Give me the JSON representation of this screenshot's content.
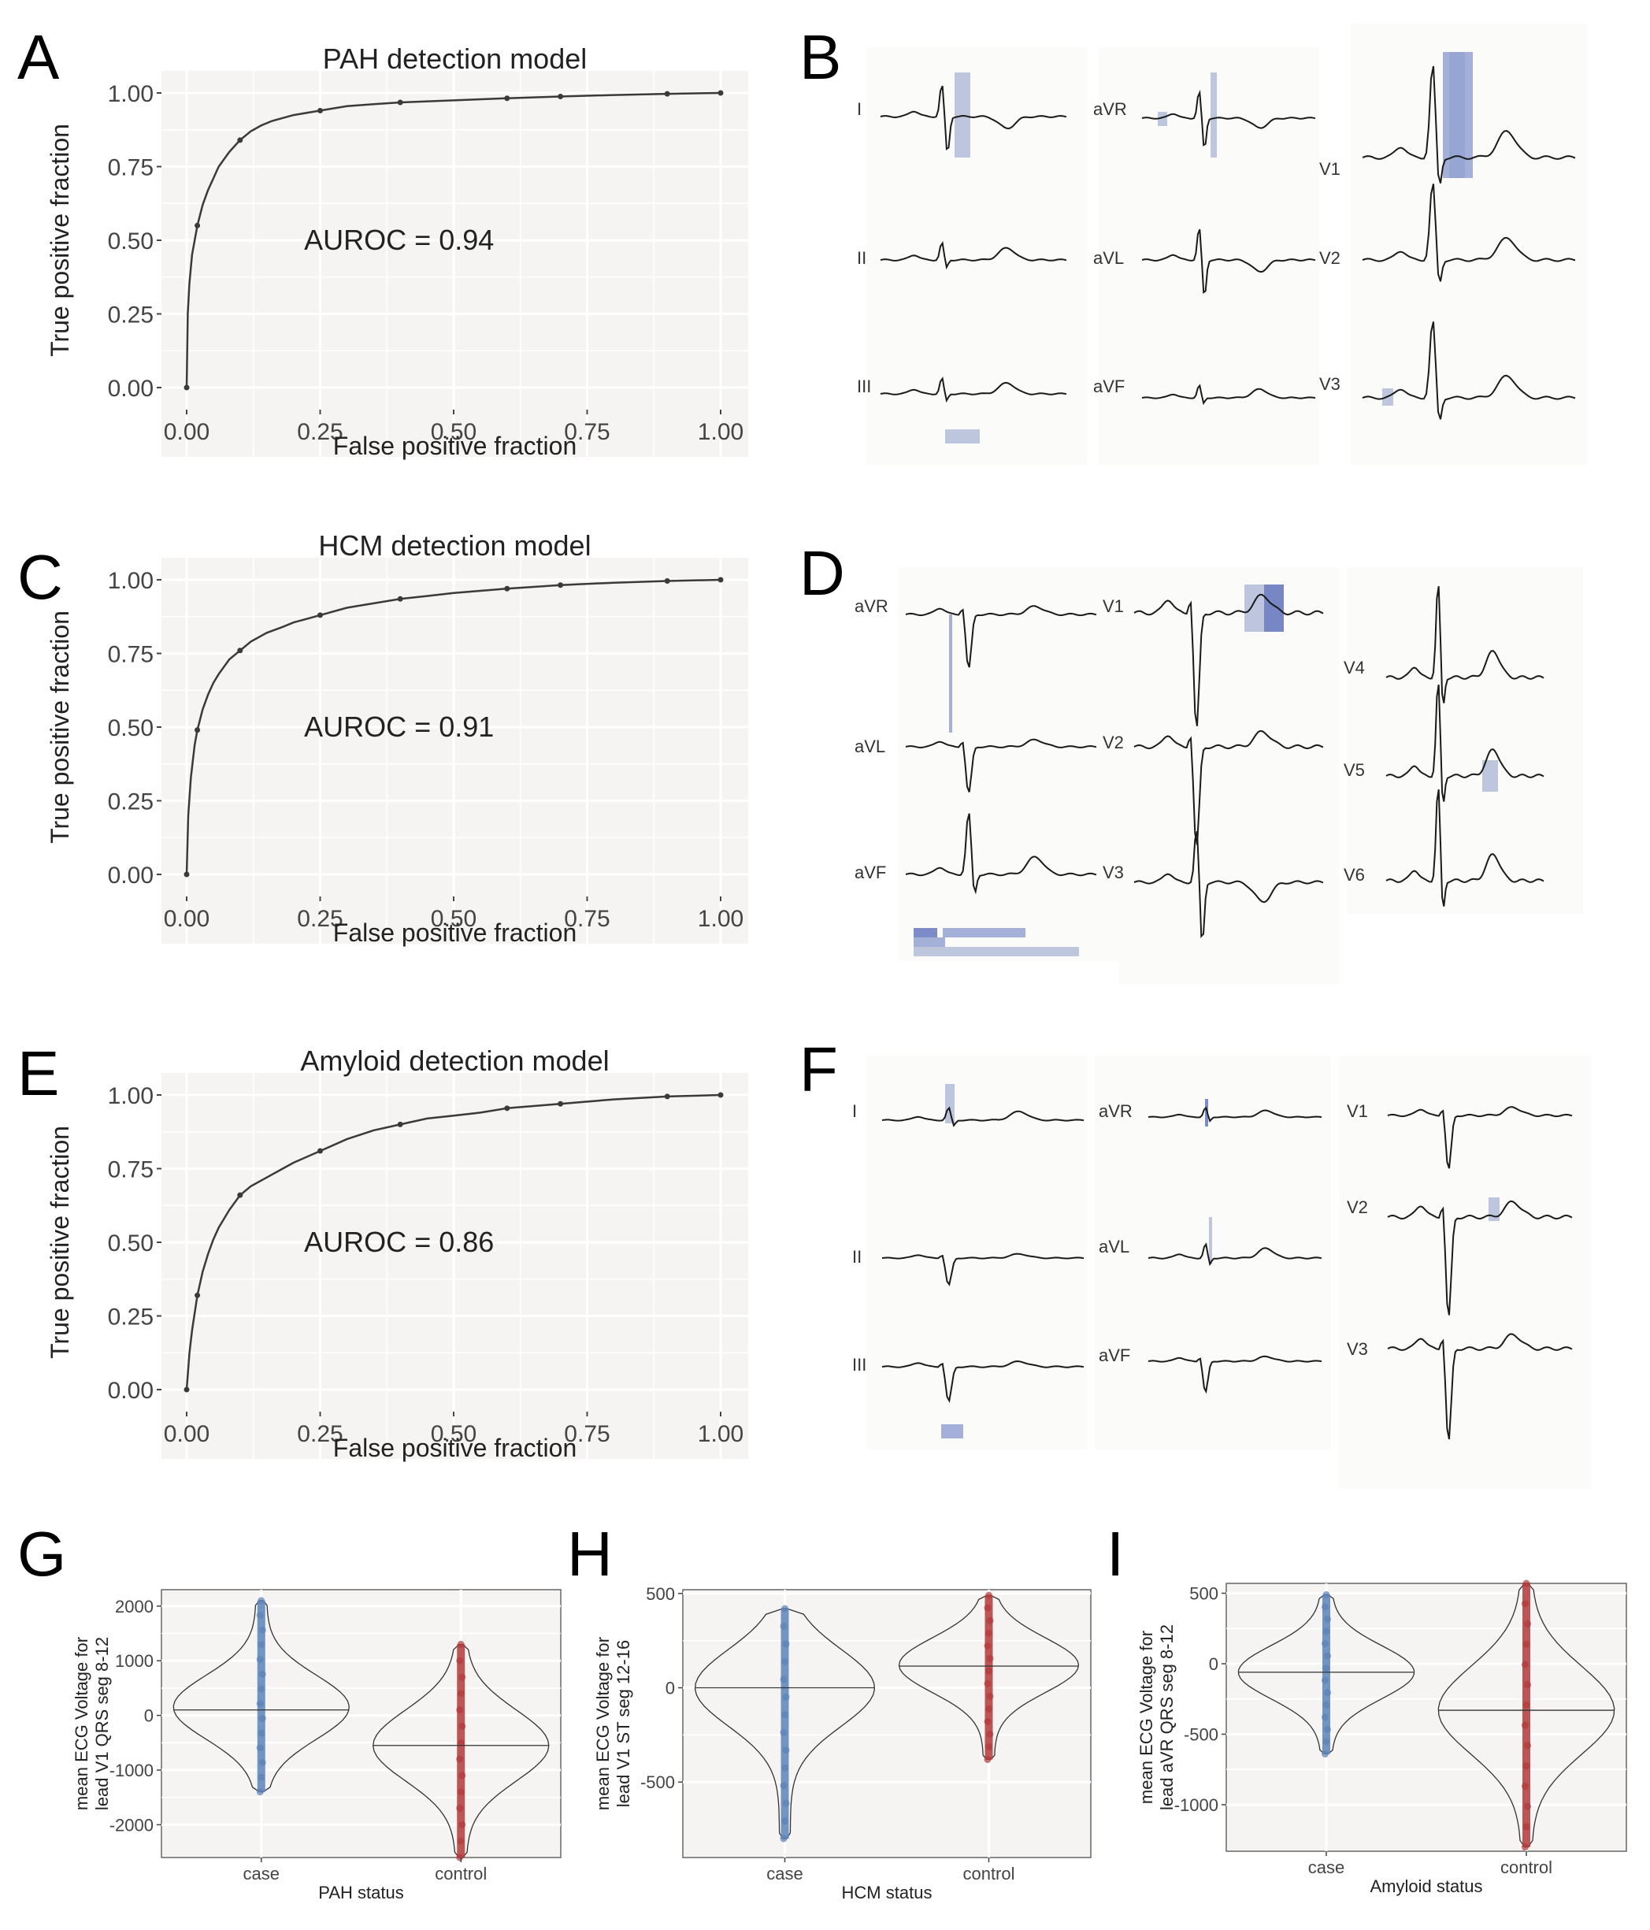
{
  "panel_letters": [
    "A",
    "B",
    "C",
    "D",
    "E",
    "F",
    "G",
    "H",
    "I"
  ],
  "colors": {
    "panel_bg": "#f5f4f2",
    "grid": "#ffffff",
    "roc_line": "#3a3a3a",
    "ecg_line": "#1a1a1a",
    "highlight_light": "#b7c0d9",
    "highlight_mid": "#9aa7d4",
    "highlight_dark": "#6f7fc2",
    "case": "#5b82b8",
    "control": "#b03a3a"
  },
  "chart_data": [
    {
      "id": "A",
      "type": "line",
      "title": "PAH detection model",
      "xlabel": "False positive fraction",
      "ylabel": "True positive fraction",
      "xlim": [
        0,
        1
      ],
      "ylim": [
        0,
        1
      ],
      "xticks": [
        "0.00",
        "0.25",
        "0.50",
        "0.75",
        "1.00"
      ],
      "yticks": [
        "0.00",
        "0.25",
        "0.50",
        "0.75",
        "1.00"
      ],
      "grid": true,
      "annotation": "AUROC = 0.94",
      "x": [
        0,
        0.002,
        0.005,
        0.01,
        0.015,
        0.02,
        0.03,
        0.04,
        0.05,
        0.06,
        0.08,
        0.1,
        0.12,
        0.14,
        0.16,
        0.18,
        0.2,
        0.25,
        0.3,
        0.35,
        0.4,
        0.5,
        0.6,
        0.7,
        0.8,
        0.9,
        1.0
      ],
      "y": [
        0,
        0.25,
        0.35,
        0.45,
        0.5,
        0.55,
        0.62,
        0.67,
        0.71,
        0.75,
        0.8,
        0.84,
        0.87,
        0.89,
        0.905,
        0.915,
        0.925,
        0.94,
        0.955,
        0.962,
        0.968,
        0.975,
        0.982,
        0.988,
        0.993,
        0.997,
        1.0
      ]
    },
    {
      "id": "C",
      "type": "line",
      "title": "HCM detection model",
      "xlabel": "False positive fraction",
      "ylabel": "True positive fraction",
      "xlim": [
        0,
        1
      ],
      "ylim": [
        0,
        1
      ],
      "xticks": [
        "0.00",
        "0.25",
        "0.50",
        "0.75",
        "1.00"
      ],
      "yticks": [
        "0.00",
        "0.25",
        "0.50",
        "0.75",
        "1.00"
      ],
      "grid": true,
      "annotation": "AUROC = 0.91",
      "x": [
        0,
        0.003,
        0.008,
        0.015,
        0.02,
        0.03,
        0.04,
        0.05,
        0.06,
        0.08,
        0.1,
        0.12,
        0.15,
        0.18,
        0.2,
        0.25,
        0.3,
        0.35,
        0.4,
        0.45,
        0.5,
        0.6,
        0.7,
        0.8,
        0.9,
        1.0
      ],
      "y": [
        0,
        0.2,
        0.33,
        0.44,
        0.49,
        0.56,
        0.61,
        0.65,
        0.68,
        0.73,
        0.76,
        0.79,
        0.82,
        0.84,
        0.855,
        0.88,
        0.905,
        0.92,
        0.935,
        0.945,
        0.955,
        0.97,
        0.982,
        0.99,
        0.996,
        1.0
      ]
    },
    {
      "id": "E",
      "type": "line",
      "title": "Amyloid detection model",
      "xlabel": "False positive fraction",
      "ylabel": "True positive fraction",
      "xlim": [
        0,
        1
      ],
      "ylim": [
        0,
        1
      ],
      "xticks": [
        "0.00",
        "0.25",
        "0.50",
        "0.75",
        "1.00"
      ],
      "yticks": [
        "0.00",
        "0.25",
        "0.50",
        "0.75",
        "1.00"
      ],
      "grid": true,
      "annotation": "AUROC = 0.86",
      "x": [
        0,
        0.005,
        0.01,
        0.02,
        0.03,
        0.04,
        0.05,
        0.06,
        0.08,
        0.1,
        0.12,
        0.15,
        0.18,
        0.2,
        0.25,
        0.3,
        0.35,
        0.4,
        0.45,
        0.5,
        0.55,
        0.6,
        0.7,
        0.8,
        0.9,
        1.0
      ],
      "y": [
        0,
        0.12,
        0.2,
        0.32,
        0.4,
        0.46,
        0.51,
        0.55,
        0.61,
        0.66,
        0.69,
        0.72,
        0.75,
        0.77,
        0.81,
        0.85,
        0.88,
        0.9,
        0.92,
        0.93,
        0.94,
        0.955,
        0.97,
        0.985,
        0.995,
        1.0
      ]
    },
    {
      "id": "G",
      "type": "scatter",
      "xlabel": "PAH status",
      "ylabel": "mean ECG Voltage for lead V1 QRS seg 8-12",
      "categories": [
        "case",
        "control"
      ],
      "ylim": [
        -2600,
        2300
      ],
      "yticks": [
        2000,
        1000,
        0,
        -1000,
        -2000
      ],
      "ytick_labels": [
        "2000",
        "1000",
        "0",
        "-1000",
        "-2000"
      ],
      "grid": true,
      "series": [
        {
          "category": "case",
          "median": 100,
          "min": -1400,
          "max": 2100,
          "mode": 150
        },
        {
          "category": "control",
          "median": -550,
          "min": -2600,
          "max": 1300,
          "mode": -550
        }
      ]
    },
    {
      "id": "H",
      "type": "scatter",
      "xlabel": "HCM status",
      "ylabel": "mean ECG Voltage for lead V1 ST seg 12-16",
      "categories": [
        "case",
        "control"
      ],
      "ylim": [
        -900,
        520
      ],
      "yticks": [
        500,
        0,
        -500
      ],
      "ytick_labels": [
        "500",
        "0",
        "-500"
      ],
      "grid": true,
      "series": [
        {
          "category": "case",
          "median": 0,
          "min": -800,
          "max": 420,
          "mode": 0
        },
        {
          "category": "control",
          "median": 115,
          "min": -380,
          "max": 490,
          "mode": 120
        }
      ]
    },
    {
      "id": "I",
      "type": "scatter",
      "xlabel": "Amyloid status",
      "ylabel": "mean ECG Voltage for lead aVR QRS seg 8-12",
      "categories": [
        "case",
        "control"
      ],
      "ylim": [
        -1330,
        570
      ],
      "yticks": [
        500,
        0,
        -500,
        -1000
      ],
      "ytick_labels": [
        "500",
        "0",
        "-500",
        "-1000"
      ],
      "grid": true,
      "series": [
        {
          "category": "case",
          "median": -60,
          "min": -640,
          "max": 490,
          "mode": -60
        },
        {
          "category": "control",
          "median": -330,
          "min": -1300,
          "max": 570,
          "mode": -330
        }
      ]
    }
  ],
  "ecg_panels": {
    "B": {
      "leads": [
        "I",
        "aVR",
        "V1",
        "II",
        "aVL",
        "V2",
        "III",
        "aVF",
        "V3"
      ]
    },
    "D": {
      "leads": [
        "aVR",
        "V1",
        "V4",
        "aVL",
        "V2",
        "V5",
        "aVF",
        "V3",
        "V6"
      ]
    },
    "F": {
      "leads": [
        "I",
        "aVR",
        "V1",
        "II",
        "aVL",
        "V2",
        "III",
        "aVF",
        "V3"
      ]
    }
  }
}
